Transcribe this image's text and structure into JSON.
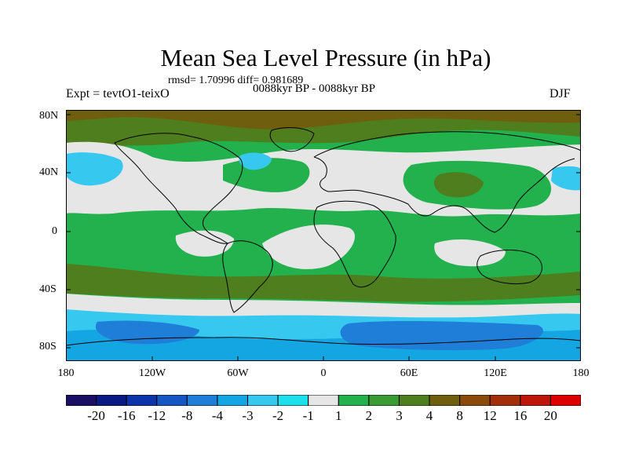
{
  "title": "Mean Sea Level Pressure (in hPa)",
  "stats": "rmsd= 1.70996 diff= 0.981689",
  "experiment": "Expt = tevtO1-teixO",
  "period": "0088kyr BP - 0088kyr BP",
  "season": "DJF",
  "lat_labels": [
    "80N",
    "40N",
    "0",
    "40S",
    "80S"
  ],
  "lon_labels": [
    "180",
    "120W",
    "60W",
    "0",
    "60E",
    "120E",
    "180"
  ],
  "colorbar": {
    "colors": [
      "#1a0f63",
      "#0a1a82",
      "#0d34a8",
      "#1556c2",
      "#1f7ed8",
      "#13a6e2",
      "#36c8ee",
      "#1ce0ec",
      "#e6e6e6",
      "#22b14c",
      "#3a9a34",
      "#4f7e1e",
      "#6f5e0d",
      "#8a4a0c",
      "#a32e0c",
      "#bd160c",
      "#dd0000"
    ],
    "labels": [
      "-20",
      "-16",
      "-12",
      "-8",
      "-4",
      "-3",
      "-2",
      "-1",
      "1",
      "2",
      "3",
      "4",
      "8",
      "12",
      "16",
      "20"
    ]
  },
  "chart_data": {
    "type": "filled-contour-map",
    "variable": "Mean Sea Level Pressure",
    "units": "hPa",
    "levels": [
      -20,
      -16,
      -12,
      -8,
      -4,
      -3,
      -2,
      -1,
      1,
      2,
      3,
      4,
      8,
      12,
      16,
      20
    ],
    "lon_range": [
      -180,
      180
    ],
    "lat_range": [
      -90,
      90
    ],
    "bands": [
      {
        "lat": [
          80,
          90
        ],
        "category": "4 to 8"
      },
      {
        "lat": [
          60,
          80
        ],
        "category": "3 to 4"
      },
      {
        "lat": [
          20,
          60
        ],
        "category": "-1 to 1 with 2 to 3 patches"
      },
      {
        "lat": [
          -20,
          20
        ],
        "category": "2 to 3"
      },
      {
        "lat": [
          -50,
          -20
        ],
        "category": "3 to 4"
      },
      {
        "lat": [
          -60,
          -50
        ],
        "category": "-1 to 1"
      },
      {
        "lat": [
          -90,
          -60
        ],
        "category": "-4 to -1"
      }
    ]
  }
}
